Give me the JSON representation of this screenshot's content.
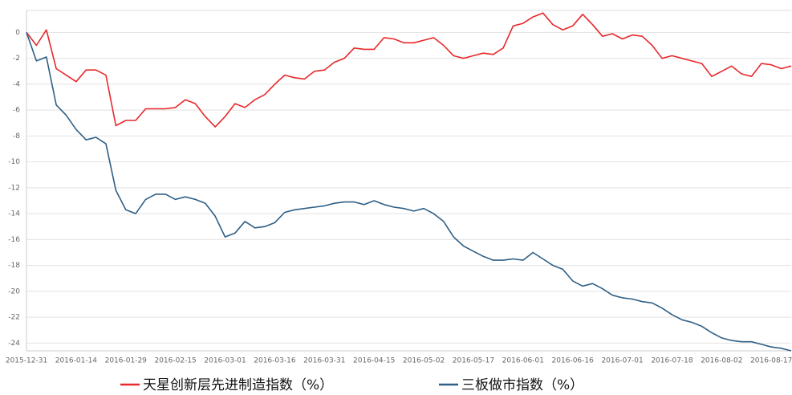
{
  "chart_data": {
    "type": "line",
    "categories": [
      "2015-12-31",
      null,
      null,
      null,
      null,
      "2016-01-14",
      null,
      null,
      null,
      null,
      "2016-01-29",
      null,
      null,
      null,
      null,
      "2016-02-15",
      null,
      null,
      null,
      null,
      "2016-03-01",
      null,
      null,
      null,
      null,
      "2016-03-16",
      null,
      null,
      null,
      null,
      "2016-03-31",
      null,
      null,
      null,
      null,
      "2016-04-15",
      null,
      null,
      null,
      null,
      "2016-05-02",
      null,
      null,
      null,
      null,
      "2016-05-17",
      null,
      null,
      null,
      null,
      "2016-06-01",
      null,
      null,
      null,
      null,
      "2016-06-16",
      null,
      null,
      null,
      null,
      "2016-07-01",
      null,
      null,
      null,
      null,
      "2016-07-18",
      null,
      null,
      null,
      null,
      "2016-08-02",
      null,
      null,
      null,
      null,
      "2016-08-17",
      null,
      null
    ],
    "series": [
      {
        "name": "天星创新层先进制造指数（%）",
        "color": "#e8282b",
        "values": [
          0,
          -1,
          0.2,
          -2.8,
          -3.3,
          -3.8,
          -2.9,
          -2.9,
          -3.3,
          -7.2,
          -6.8,
          -6.8,
          -5.9,
          -5.9,
          -5.9,
          -5.8,
          -5.2,
          -5.5,
          -6.5,
          -7.3,
          -6.5,
          -5.5,
          -5.8,
          -5.2,
          -4.8,
          -4.0,
          -3.3,
          -3.5,
          -3.6,
          -3.0,
          -2.9,
          -2.3,
          -2.0,
          -1.2,
          -1.3,
          -1.3,
          -0.4,
          -0.5,
          -0.8,
          -0.8,
          -0.6,
          -0.4,
          -1.0,
          -1.8,
          -2.0,
          -1.8,
          -1.6,
          -1.7,
          -1.2,
          0.5,
          0.7,
          1.2,
          1.5,
          0.6,
          0.2,
          0.5,
          1.4,
          0.6,
          -0.3,
          -0.1,
          -0.5,
          -0.2,
          -0.3,
          -1.0,
          -2.0,
          -1.8,
          -2.0,
          -2.2,
          -2.4,
          -3.4,
          -3.0,
          -2.6,
          -3.2,
          -3.4,
          -2.4,
          -2.5,
          -2.8,
          -2.6
        ]
      },
      {
        "name": "三板做市指数（%）",
        "color": "#2e5f86",
        "values": [
          0,
          -2.2,
          -1.9,
          -5.6,
          -6.4,
          -7.5,
          -8.3,
          -8.1,
          -8.6,
          -12.2,
          -13.7,
          -14.0,
          -12.9,
          -12.5,
          -12.5,
          -12.9,
          -12.7,
          -12.9,
          -13.2,
          -14.2,
          -15.8,
          -15.5,
          -14.6,
          -15.1,
          -15.0,
          -14.7,
          -13.9,
          -13.7,
          -13.6,
          -13.5,
          -13.4,
          -13.2,
          -13.1,
          -13.1,
          -13.3,
          -13.0,
          -13.3,
          -13.5,
          -13.6,
          -13.8,
          -13.6,
          -14.0,
          -14.6,
          -15.8,
          -16.5,
          -16.9,
          -17.3,
          -17.6,
          -17.6,
          -17.5,
          -17.6,
          -17.0,
          -17.5,
          -18.0,
          -18.3,
          -19.2,
          -19.6,
          -19.4,
          -19.8,
          -20.3,
          -20.5,
          -20.6,
          -20.8,
          -20.9,
          -21.3,
          -21.8,
          -22.2,
          -22.4,
          -22.7,
          -23.2,
          -23.6,
          -23.8,
          -23.9,
          -23.9,
          -24.1,
          -24.3,
          -24.4,
          -24.6
        ]
      }
    ],
    "ylim": [
      -24.6,
      1.7
    ],
    "yticks": [
      0,
      -2,
      -4,
      -6,
      -8,
      -10,
      -12,
      -14,
      -16,
      -18,
      -20,
      -22,
      -24
    ],
    "grid": true
  }
}
